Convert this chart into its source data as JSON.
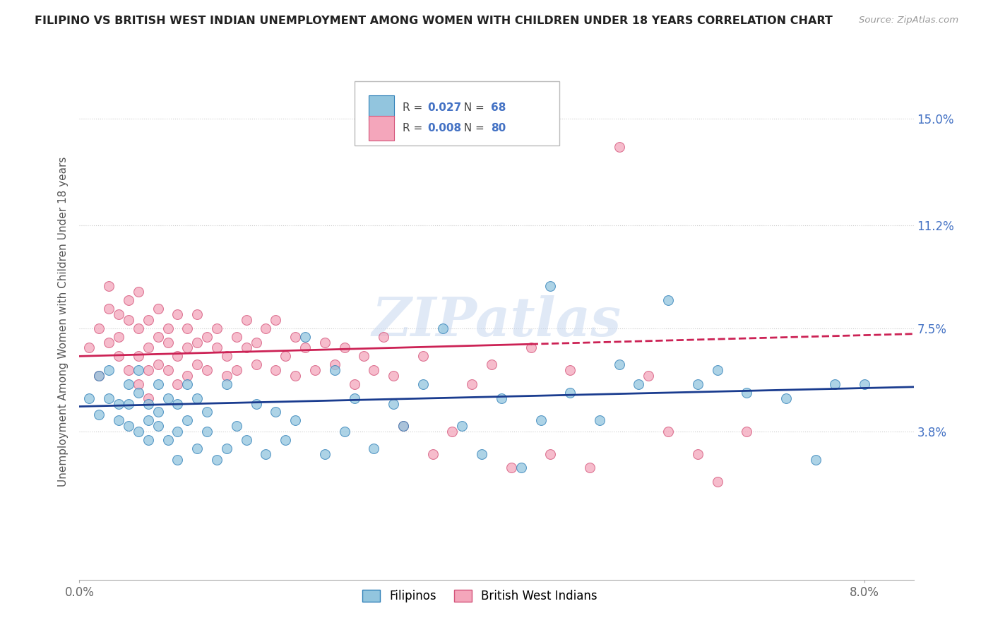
{
  "title": "FILIPINO VS BRITISH WEST INDIAN UNEMPLOYMENT AMONG WOMEN WITH CHILDREN UNDER 18 YEARS CORRELATION CHART",
  "source": "Source: ZipAtlas.com",
  "ylabel": "Unemployment Among Women with Children Under 18 years",
  "xlim": [
    0.0,
    0.085
  ],
  "ylim": [
    -0.015,
    0.17
  ],
  "ytick_vals": [
    0.038,
    0.075,
    0.112,
    0.15
  ],
  "ytick_labels": [
    "3.8%",
    "7.5%",
    "11.2%",
    "15.0%"
  ],
  "xtick_vals": [
    0.0,
    0.08
  ],
  "xtick_labels": [
    "0.0%",
    "8.0%"
  ],
  "filipino_color": "#92c5de",
  "bwi_color": "#f4a6bb",
  "filipino_edge": "#3080b8",
  "bwi_edge": "#d4547a",
  "trend_blue": "#1a3c8f",
  "trend_pink_solid": "#cc2255",
  "trend_pink_dash": "#cc2255",
  "watermark": "ZIPatlas",
  "watermark_color": "#c8d8f0",
  "legend_R_filipino": "0.027",
  "legend_N_filipino": "68",
  "legend_R_bwi": "0.008",
  "legend_N_bwi": "80",
  "legend_text_color": "#4472c4",
  "filipino_x": [
    0.001,
    0.002,
    0.002,
    0.003,
    0.003,
    0.004,
    0.004,
    0.005,
    0.005,
    0.005,
    0.006,
    0.006,
    0.006,
    0.007,
    0.007,
    0.007,
    0.008,
    0.008,
    0.008,
    0.009,
    0.009,
    0.01,
    0.01,
    0.01,
    0.011,
    0.011,
    0.012,
    0.012,
    0.013,
    0.013,
    0.014,
    0.015,
    0.015,
    0.016,
    0.017,
    0.018,
    0.019,
    0.02,
    0.021,
    0.022,
    0.023,
    0.025,
    0.026,
    0.027,
    0.028,
    0.03,
    0.032,
    0.033,
    0.035,
    0.037,
    0.039,
    0.041,
    0.043,
    0.045,
    0.047,
    0.048,
    0.05,
    0.053,
    0.055,
    0.057,
    0.06,
    0.063,
    0.065,
    0.068,
    0.072,
    0.075,
    0.077,
    0.08
  ],
  "filipino_y": [
    0.05,
    0.058,
    0.044,
    0.05,
    0.06,
    0.048,
    0.042,
    0.055,
    0.04,
    0.048,
    0.052,
    0.038,
    0.06,
    0.042,
    0.048,
    0.035,
    0.04,
    0.055,
    0.045,
    0.035,
    0.05,
    0.038,
    0.048,
    0.028,
    0.042,
    0.055,
    0.032,
    0.05,
    0.038,
    0.045,
    0.028,
    0.032,
    0.055,
    0.04,
    0.035,
    0.048,
    0.03,
    0.045,
    0.035,
    0.042,
    0.072,
    0.03,
    0.06,
    0.038,
    0.05,
    0.032,
    0.048,
    0.04,
    0.055,
    0.075,
    0.04,
    0.03,
    0.05,
    0.025,
    0.042,
    0.09,
    0.052,
    0.042,
    0.062,
    0.055,
    0.085,
    0.055,
    0.06,
    0.052,
    0.05,
    0.028,
    0.055,
    0.055
  ],
  "bwi_x": [
    0.001,
    0.002,
    0.002,
    0.003,
    0.003,
    0.003,
    0.004,
    0.004,
    0.004,
    0.005,
    0.005,
    0.005,
    0.006,
    0.006,
    0.006,
    0.006,
    0.007,
    0.007,
    0.007,
    0.007,
    0.008,
    0.008,
    0.008,
    0.009,
    0.009,
    0.009,
    0.01,
    0.01,
    0.01,
    0.011,
    0.011,
    0.011,
    0.012,
    0.012,
    0.012,
    0.013,
    0.013,
    0.014,
    0.014,
    0.015,
    0.015,
    0.016,
    0.016,
    0.017,
    0.017,
    0.018,
    0.018,
    0.019,
    0.02,
    0.02,
    0.021,
    0.022,
    0.022,
    0.023,
    0.024,
    0.025,
    0.026,
    0.027,
    0.028,
    0.029,
    0.03,
    0.031,
    0.032,
    0.033,
    0.035,
    0.036,
    0.038,
    0.04,
    0.042,
    0.044,
    0.046,
    0.048,
    0.05,
    0.052,
    0.055,
    0.058,
    0.06,
    0.063,
    0.065,
    0.068
  ],
  "bwi_y": [
    0.068,
    0.075,
    0.058,
    0.082,
    0.07,
    0.09,
    0.065,
    0.08,
    0.072,
    0.078,
    0.06,
    0.085,
    0.065,
    0.075,
    0.055,
    0.088,
    0.068,
    0.078,
    0.06,
    0.05,
    0.072,
    0.062,
    0.082,
    0.07,
    0.06,
    0.075,
    0.065,
    0.055,
    0.08,
    0.068,
    0.075,
    0.058,
    0.07,
    0.062,
    0.08,
    0.072,
    0.06,
    0.068,
    0.075,
    0.058,
    0.065,
    0.072,
    0.06,
    0.068,
    0.078,
    0.062,
    0.07,
    0.075,
    0.06,
    0.078,
    0.065,
    0.072,
    0.058,
    0.068,
    0.06,
    0.07,
    0.062,
    0.068,
    0.055,
    0.065,
    0.06,
    0.072,
    0.058,
    0.04,
    0.065,
    0.03,
    0.038,
    0.055,
    0.062,
    0.025,
    0.068,
    0.03,
    0.06,
    0.025,
    0.14,
    0.058,
    0.038,
    0.03,
    0.02,
    0.038
  ]
}
